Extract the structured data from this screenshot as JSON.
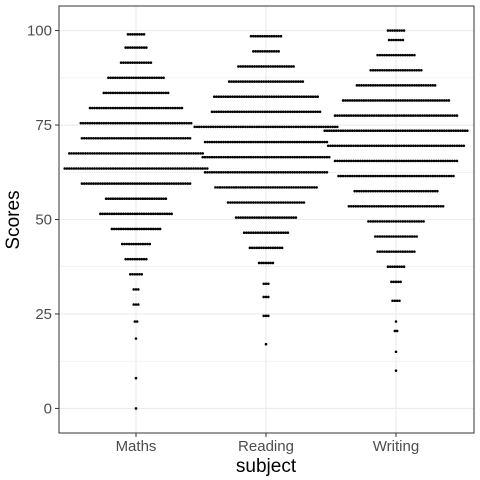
{
  "chart_data": {
    "type": "dotplot",
    "xlabel": "subject",
    "ylabel": "Scores",
    "categories": [
      "Maths",
      "Reading",
      "Writing"
    ],
    "ylim": [
      -6.5,
      106.5
    ],
    "yticks": [
      0,
      25,
      50,
      75,
      100
    ],
    "grid": true,
    "colors": {
      "dot": "#000000",
      "grid": "#ebebeb",
      "panel_border": "#333333"
    },
    "series": [
      {
        "category": "Maths",
        "bins": [
          {
            "y": 0,
            "count": 1
          },
          {
            "y": 8,
            "count": 1
          },
          {
            "y": 18.5,
            "count": 1
          },
          {
            "y": 23,
            "count": 2
          },
          {
            "y": 27.5,
            "count": 3
          },
          {
            "y": 31.5,
            "count": 3
          },
          {
            "y": 35.5,
            "count": 6
          },
          {
            "y": 39.5,
            "count": 10
          },
          {
            "y": 43.5,
            "count": 13
          },
          {
            "y": 47.5,
            "count": 22
          },
          {
            "y": 51.5,
            "count": 32
          },
          {
            "y": 55.5,
            "count": 27
          },
          {
            "y": 59.5,
            "count": 48
          },
          {
            "y": 63.5,
            "count": 63
          },
          {
            "y": 67.5,
            "count": 59
          },
          {
            "y": 71.5,
            "count": 48
          },
          {
            "y": 75.5,
            "count": 49
          },
          {
            "y": 79.5,
            "count": 41
          },
          {
            "y": 83.5,
            "count": 29
          },
          {
            "y": 87.5,
            "count": 25
          },
          {
            "y": 91.5,
            "count": 14
          },
          {
            "y": 95.5,
            "count": 10
          },
          {
            "y": 99,
            "count": 8
          }
        ]
      },
      {
        "category": "Reading",
        "bins": [
          {
            "y": 17,
            "count": 1
          },
          {
            "y": 24.5,
            "count": 3
          },
          {
            "y": 29.5,
            "count": 3
          },
          {
            "y": 33,
            "count": 3
          },
          {
            "y": 38.5,
            "count": 7
          },
          {
            "y": 42.5,
            "count": 15
          },
          {
            "y": 46.5,
            "count": 20
          },
          {
            "y": 50.5,
            "count": 27
          },
          {
            "y": 54.5,
            "count": 34
          },
          {
            "y": 58.5,
            "count": 45
          },
          {
            "y": 62.5,
            "count": 54
          },
          {
            "y": 66.5,
            "count": 56
          },
          {
            "y": 70.5,
            "count": 54
          },
          {
            "y": 74.5,
            "count": 63
          },
          {
            "y": 78.5,
            "count": 48
          },
          {
            "y": 82.5,
            "count": 46
          },
          {
            "y": 86.5,
            "count": 33
          },
          {
            "y": 90.5,
            "count": 25
          },
          {
            "y": 94.5,
            "count": 12
          },
          {
            "y": 98.5,
            "count": 14
          }
        ]
      },
      {
        "category": "Writing",
        "bins": [
          {
            "y": 10,
            "count": 1
          },
          {
            "y": 15,
            "count": 1
          },
          {
            "y": 20.5,
            "count": 2
          },
          {
            "y": 23,
            "count": 1
          },
          {
            "y": 28.5,
            "count": 4
          },
          {
            "y": 33.5,
            "count": 5
          },
          {
            "y": 37.5,
            "count": 8
          },
          {
            "y": 41.5,
            "count": 17
          },
          {
            "y": 45.5,
            "count": 19
          },
          {
            "y": 49.5,
            "count": 25
          },
          {
            "y": 53.5,
            "count": 42
          },
          {
            "y": 57.5,
            "count": 37
          },
          {
            "y": 61.5,
            "count": 51
          },
          {
            "y": 65.5,
            "count": 54
          },
          {
            "y": 69.5,
            "count": 60
          },
          {
            "y": 73.5,
            "count": 63
          },
          {
            "y": 77.5,
            "count": 54
          },
          {
            "y": 81.5,
            "count": 47
          },
          {
            "y": 85.5,
            "count": 35
          },
          {
            "y": 89.5,
            "count": 23
          },
          {
            "y": 93.5,
            "count": 17
          },
          {
            "y": 97.5,
            "count": 7
          },
          {
            "y": 100,
            "count": 8
          }
        ]
      }
    ]
  }
}
